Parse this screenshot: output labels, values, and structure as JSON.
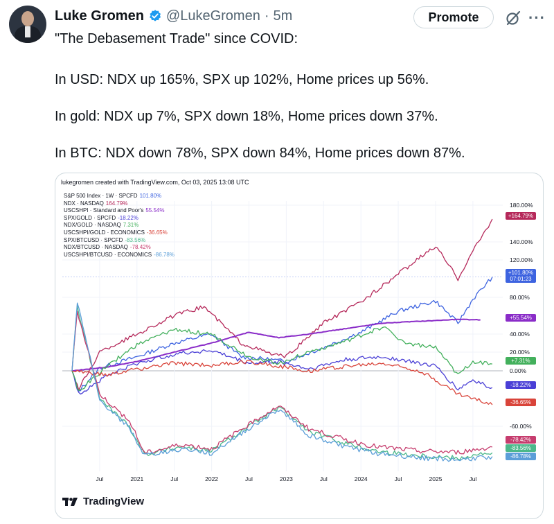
{
  "tweet": {
    "author_name": "Luke Gromen",
    "handle": "@LukeGromen",
    "separator": "·",
    "time": "5m",
    "promote_label": "Promote",
    "more_label": "···",
    "icons": {
      "verified": "verified-badge-icon",
      "grok": "grok-icon",
      "more": "more-options-icon"
    },
    "lines": [
      "\"The Debasement Trade\" since COVID:",
      "In USD: NDX up 165%, SPX up 102%, Home prices up 56%.",
      "In gold: NDX up 7%, SPX down 18%, Home prices down 37%.",
      "In BTC: NDX down 78%, SPX down 84%, Home prices down 87%."
    ]
  },
  "embed": {
    "header": "lukegromen created with TradingView.com, Oct 03, 2025 13:08 UTC",
    "brand": "TradingView",
    "legend": [
      {
        "label": "S&P 500 Index · 1W · SPCFD",
        "value": "101.80%"
      },
      {
        "label": "NDX · NASDAQ",
        "value": "164.79%"
      },
      {
        "label": "USCSHPI · Standard and Poor's",
        "value": "55.54%"
      },
      {
        "label": "SPX/GOLD · SPCFD",
        "value": "-18.22%"
      },
      {
        "label": "NDX/GOLD · NASDAQ",
        "value": "7.31%"
      },
      {
        "label": "USCSHPI/GOLD · ECONOMICS",
        "value": "-36.65%"
      },
      {
        "label": "SPX/BTCUSD · SPCFD",
        "value": "-83.56%"
      },
      {
        "label": "NDX/BTCUSD · NASDAQ",
        "value": "-78.42%"
      },
      {
        "label": "USCSHPI/BTCUSD · ECONOMICS",
        "value": "-86.78%"
      }
    ],
    "price_badges": [
      {
        "text": "+164.79%",
        "color": "#b5285a"
      },
      {
        "text": "+101.80%",
        "color": "#3d63e0",
        "subtext": "07:01:23"
      },
      {
        "text": "+55.54%",
        "color": "#8a2cc8"
      },
      {
        "text": "+7.31%",
        "color": "#43b05c"
      },
      {
        "text": "-18.22%",
        "color": "#4a3fd6"
      },
      {
        "text": "-36.65%",
        "color": "#d9443a"
      },
      {
        "text": "-78.42%",
        "color": "#c63d6e"
      },
      {
        "text": "-83.56%",
        "color": "#4bb88a"
      },
      {
        "text": "-86.78%",
        "color": "#5b9ed8"
      }
    ]
  },
  "chart_data": {
    "type": "line",
    "y_tick_labels": [
      "180.00%",
      "140.00%",
      "120.00%",
      "80.00%",
      "40.00%",
      "20.00%",
      "0.00%",
      "-60.00%"
    ],
    "x_tick_labels": [
      "Jul",
      "2021",
      "Jul",
      "2022",
      "Jul",
      "2023",
      "Jul",
      "2024",
      "Jul",
      "2025",
      "Jul"
    ],
    "x_range": [
      "2020-02",
      "2025-10"
    ],
    "grid": true,
    "legend_position": "top-left",
    "series": [
      {
        "name": "S&P 500 Index · 1W · SPCFD",
        "color": "#3d63e0",
        "x": [
          2020.13,
          2020.22,
          2020.5,
          2021.0,
          2021.5,
          2021.99,
          2022.4,
          2022.8,
          2023.0,
          2023.5,
          2024.0,
          2024.5,
          2025.0,
          2025.3,
          2025.5,
          2025.76
        ],
        "y": [
          0,
          -22,
          3,
          15,
          30,
          40,
          15,
          12,
          10,
          25,
          42,
          65,
          76,
          52,
          78,
          101.8
        ]
      },
      {
        "name": "NDX · NASDAQ",
        "color": "#b5285a",
        "x": [
          2020.13,
          2020.22,
          2020.5,
          2021.0,
          2021.5,
          2021.9,
          2022.4,
          2022.8,
          2023.0,
          2023.5,
          2024.0,
          2024.5,
          2025.0,
          2025.3,
          2025.5,
          2025.76
        ],
        "y": [
          0,
          -20,
          20,
          40,
          60,
          70,
          30,
          18,
          15,
          52,
          75,
          105,
          135,
          100,
          130,
          164.8
        ]
      },
      {
        "name": "USCSHPI · Standard and Poor's",
        "color": "#8a2cc8",
        "x": [
          2020.13,
          2020.6,
          2021.0,
          2021.5,
          2022.0,
          2022.5,
          2022.9,
          2023.3,
          2023.8,
          2024.3,
          2024.8,
          2025.3,
          2025.6
        ],
        "y": [
          0,
          4,
          10,
          20,
          30,
          42,
          36,
          40,
          46,
          52,
          54,
          56,
          55.5
        ]
      },
      {
        "name": "SPX/GOLD · SPCFD",
        "color": "#4a3fd6",
        "x": [
          2020.13,
          2020.22,
          2020.6,
          2021.0,
          2021.5,
          2021.99,
          2022.5,
          2022.9,
          2023.3,
          2023.8,
          2024.3,
          2024.8,
          2025.0,
          2025.3,
          2025.5,
          2025.76
        ],
        "y": [
          0,
          -25,
          -5,
          8,
          18,
          22,
          8,
          10,
          2,
          12,
          15,
          8,
          5,
          -20,
          -10,
          -18.2
        ]
      },
      {
        "name": "NDX/GOLD · NASDAQ",
        "color": "#43b05c",
        "x": [
          2020.13,
          2020.22,
          2020.6,
          2021.0,
          2021.5,
          2021.99,
          2022.5,
          2022.9,
          2023.3,
          2023.8,
          2024.3,
          2024.6,
          2025.0,
          2025.3,
          2025.5,
          2025.76
        ],
        "y": [
          0,
          -22,
          5,
          28,
          45,
          40,
          15,
          8,
          20,
          32,
          48,
          30,
          25,
          -5,
          10,
          7.3
        ]
      },
      {
        "name": "USCSHPI/GOLD · ECONOMICS",
        "color": "#d9443a",
        "x": [
          2020.13,
          2020.6,
          2021.0,
          2021.5,
          2022.0,
          2022.5,
          2022.9,
          2023.3,
          2023.8,
          2024.3,
          2024.8,
          2025.3,
          2025.76
        ],
        "y": [
          0,
          -5,
          2,
          8,
          6,
          10,
          5,
          0,
          5,
          8,
          0,
          -25,
          -36.7
        ]
      },
      {
        "name": "SPX/BTCUSD · SPCFD",
        "color": "#4bb88a",
        "x": [
          2020.13,
          2020.2,
          2020.5,
          2020.9,
          2021.1,
          2021.6,
          2022.0,
          2022.5,
          2022.9,
          2023.0,
          2023.3,
          2023.8,
          2024.2,
          2024.8,
          2025.3,
          2025.76
        ],
        "y": [
          0,
          70,
          -30,
          -60,
          -85,
          -78,
          -82,
          -60,
          -40,
          -45,
          -65,
          -75,
          -82,
          -86,
          -88,
          -83.6
        ]
      },
      {
        "name": "NDX/BTCUSD · NASDAQ",
        "color": "#c63d6e",
        "x": [
          2020.13,
          2020.2,
          2020.5,
          2020.9,
          2021.1,
          2021.6,
          2022.0,
          2022.5,
          2022.9,
          2023.0,
          2023.3,
          2023.8,
          2024.2,
          2024.8,
          2025.3,
          2025.76
        ],
        "y": [
          0,
          65,
          -25,
          -55,
          -84,
          -76,
          -80,
          -58,
          -38,
          -44,
          -62,
          -72,
          -78,
          -82,
          -83,
          -78.4
        ]
      },
      {
        "name": "USCSHPI/BTCUSD · ECONOMICS",
        "color": "#5b9ed8",
        "x": [
          2020.13,
          2020.2,
          2020.5,
          2020.9,
          2021.1,
          2021.6,
          2022.0,
          2022.5,
          2022.9,
          2023.0,
          2023.3,
          2023.8,
          2024.2,
          2024.8,
          2025.3,
          2025.76
        ],
        "y": [
          0,
          75,
          -32,
          -62,
          -86,
          -80,
          -84,
          -62,
          -42,
          -48,
          -68,
          -78,
          -84,
          -88,
          -90,
          -86.8
        ]
      }
    ]
  }
}
